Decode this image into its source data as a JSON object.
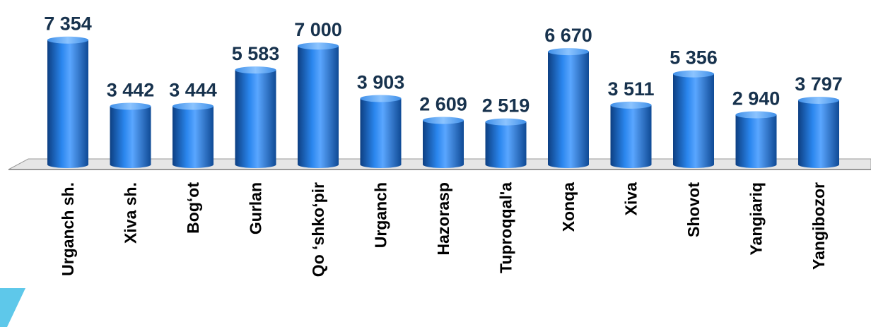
{
  "chart_data": {
    "type": "bar",
    "style": "3d-cylinder",
    "categories": [
      "Urganch sh.",
      "Xiva sh.",
      "Bog‘ot",
      "Gurlan",
      "Qo ‘shko‘pir",
      "Urganch",
      "Hazorasp",
      "Tuproqqal'a",
      "Xonqa",
      "Xiva",
      "Shovot",
      "Yangiariq",
      "Yangibozor"
    ],
    "values": [
      7354,
      3442,
      3444,
      5583,
      7000,
      3903,
      2609,
      2519,
      6670,
      3511,
      5356,
      2940,
      3797
    ],
    "value_labels": [
      "7 354",
      "3 442",
      "3 444",
      "5 583",
      "7 000",
      "3 903",
      "2 609",
      "2 519",
      "6 670",
      "3 511",
      "5 356",
      "2 940",
      "3 797"
    ],
    "title": "",
    "xlabel": "",
    "ylabel": "",
    "ylim": [
      0,
      8000
    ],
    "grid": false,
    "legend": "none",
    "colors": {
      "bar": "#1f73d6",
      "bar_dark": "#0d3f82",
      "bar_light": "#6ab0ff",
      "floor": "#e6e6e6",
      "value_text": "#17324d",
      "accent_triangle": "#5ec8ea"
    }
  }
}
